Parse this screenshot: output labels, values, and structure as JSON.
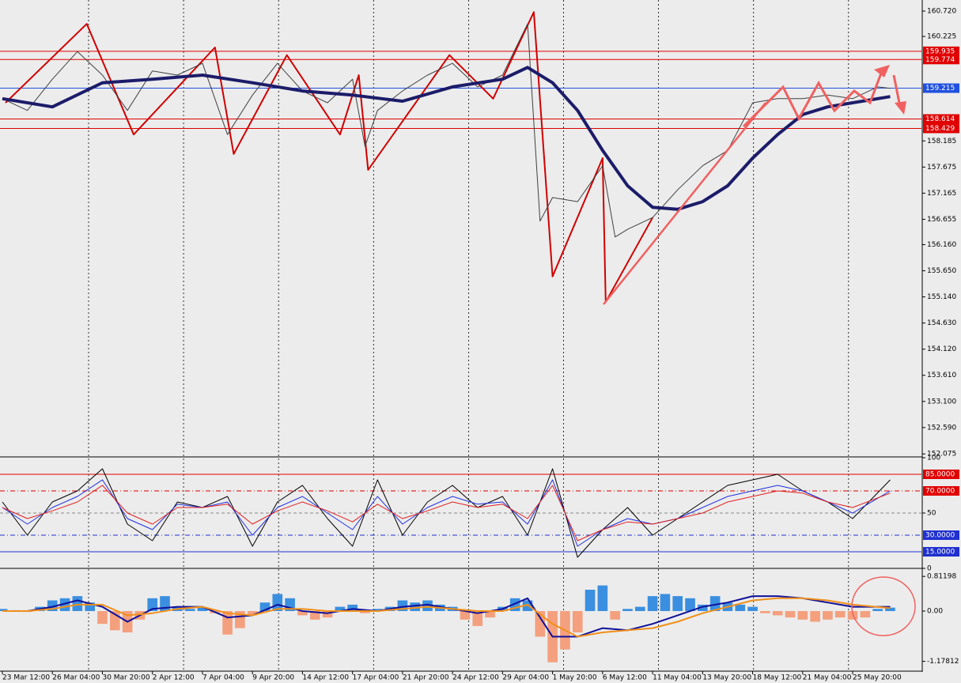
{
  "chart_data": [
    {
      "type": "line",
      "xlim": [
        0,
        294
      ],
      "ylim": [
        152.032,
        160.936
      ],
      "yticks": [
        {
          "value": 160.72,
          "label": "160.720"
        },
        160.225,
        158.185,
        157.675,
        157.165,
        156.655,
        {
          "value": 156.16,
          "label": "156.160"
        },
        {
          "value": 155.65,
          "label": "155.650"
        },
        {
          "value": 155.14,
          "label": "155.140"
        },
        {
          "value": 154.63,
          "label": "154.630"
        },
        {
          "value": 154.12,
          "label": "154.120"
        },
        {
          "value": 153.61,
          "label": "153.610"
        },
        {
          "value": 153.1,
          "label": "153.100"
        },
        {
          "value": 152.59,
          "label": "152.590"
        },
        152.075
      ],
      "xticks": [
        {
          "value": 0,
          "label": "23 Mar 12:00"
        },
        {
          "value": 16,
          "label": "26 Mar 04:00"
        },
        {
          "value": 32,
          "label": "30 Mar 20:00"
        },
        {
          "value": 48,
          "label": "2 Apr 12:00"
        },
        {
          "value": 64,
          "label": "7 Apr 04:00"
        },
        {
          "value": 80,
          "label": "9 Apr 20:00"
        },
        {
          "value": 96,
          "label": "14 Apr 12:00"
        },
        {
          "value": 112,
          "label": "17 Apr 04:00"
        },
        {
          "value": 128,
          "label": "21 Apr 20:00"
        },
        {
          "value": 144,
          "label": "24 Apr 12:00"
        },
        {
          "value": 160,
          "label": "29 Apr 04:00"
        },
        {
          "value": 176,
          "label": "1 May 20:00"
        },
        {
          "value": 192,
          "label": "6 May 12:00"
        },
        {
          "value": 208,
          "label": "11 May 04:00"
        },
        {
          "value": 224,
          "label": "13 May 20:00"
        },
        {
          "value": 240,
          "label": "18 May 12:00"
        },
        {
          "value": 256,
          "label": "21 May 04:00"
        },
        {
          "value": 272,
          "label": "25 May 20:00"
        }
      ],
      "hlines": [
        {
          "value": 159.935,
          "color": "#e00000"
        },
        {
          "value": 159.774,
          "color": "#e00000"
        },
        {
          "value": 159.215,
          "color": "#2050e0"
        },
        {
          "value": 158.614,
          "color": "#e00000"
        },
        {
          "value": 158.429,
          "color": "#e00000"
        }
      ],
      "series": [
        {
          "color": "#d00000",
          "width": 2,
          "x": [
            1,
            27,
            42,
            68,
            74,
            91,
            108,
            114,
            117,
            143,
            157,
            170,
            176,
            192,
            193,
            208
          ],
          "values": [
            158.93,
            160.47,
            158.31,
            160.01,
            157.93,
            159.86,
            158.31,
            159.47,
            157.62,
            159.86,
            159.01,
            160.7,
            155.54,
            157.85,
            155.04,
            156.69
          ]
        },
        {
          "color": "#404040",
          "width": 1,
          "x": [
            0,
            8,
            16,
            24,
            32,
            40,
            48,
            56,
            64,
            72,
            80,
            88,
            96,
            104,
            112,
            116,
            120,
            128,
            136,
            144,
            152,
            160,
            168,
            172,
            176,
            184,
            192,
            196,
            200,
            208,
            216,
            224,
            232,
            240,
            248,
            256,
            264,
            272,
            280,
            284
          ],
          "values": [
            159.01,
            158.78,
            159.39,
            159.93,
            159.47,
            158.78,
            159.55,
            159.47,
            159.7,
            158.31,
            159.08,
            159.7,
            159.16,
            158.93,
            159.39,
            158.08,
            158.78,
            159.16,
            159.47,
            159.7,
            159.24,
            159.47,
            160.47,
            156.62,
            157.08,
            157.0,
            157.7,
            156.31,
            156.46,
            156.69,
            157.23,
            157.7,
            158.0,
            158.93,
            159.01,
            159.01,
            159.08,
            159.01,
            159.24,
            159.21
          ]
        },
        {
          "color": "#1c1c6a",
          "width": 4,
          "x": [
            0,
            16,
            32,
            48,
            64,
            80,
            96,
            112,
            128,
            144,
            160,
            168,
            176,
            184,
            192,
            200,
            208,
            216,
            224,
            232,
            240,
            248,
            256,
            264,
            272,
            284
          ],
          "values": [
            159.01,
            158.85,
            159.32,
            159.39,
            159.47,
            159.32,
            159.16,
            159.08,
            158.96,
            159.24,
            159.39,
            159.62,
            159.32,
            158.78,
            158.0,
            157.31,
            156.89,
            156.85,
            157.0,
            157.31,
            157.85,
            158.31,
            158.7,
            158.85,
            158.93,
            159.05
          ]
        }
      ]
    },
    {
      "type": "line",
      "xlim": [
        0,
        294
      ],
      "ylim": [
        0,
        100
      ],
      "yticks": [
        100,
        50,
        0
      ],
      "hlines": [
        {
          "value": 85,
          "label": "85.0000",
          "color": "#e00000"
        },
        {
          "value": 70,
          "label": "70.0000",
          "color": "#e00000"
        },
        {
          "value": 30,
          "label": "30.0000",
          "color": "#2030d0"
        },
        {
          "value": 15,
          "label": "15.0000",
          "color": "#2030d0"
        }
      ],
      "series": [
        {
          "color": "#000000",
          "width": 1,
          "x": [
            0,
            8,
            16,
            24,
            32,
            40,
            48,
            56,
            64,
            72,
            80,
            88,
            96,
            104,
            112,
            120,
            128,
            136,
            144,
            152,
            160,
            168,
            176,
            184,
            192,
            200,
            208,
            216,
            224,
            232,
            240,
            248,
            256,
            264,
            272,
            284
          ],
          "values": [
            60,
            30,
            60,
            70,
            90,
            40,
            25,
            60,
            55,
            65,
            20,
            60,
            75,
            45,
            20,
            80,
            30,
            60,
            75,
            55,
            65,
            30,
            90,
            10,
            35,
            55,
            30,
            45,
            60,
            75,
            80,
            85,
            70,
            60,
            45,
            80
          ]
        },
        {
          "color": "#2030e0",
          "width": 1,
          "x": [
            0,
            8,
            16,
            24,
            32,
            40,
            48,
            56,
            64,
            72,
            80,
            88,
            96,
            104,
            112,
            120,
            128,
            136,
            144,
            152,
            160,
            168,
            176,
            184,
            192,
            200,
            208,
            216,
            224,
            232,
            240,
            248,
            256,
            264,
            272,
            284
          ],
          "values": [
            55,
            40,
            55,
            65,
            80,
            45,
            35,
            58,
            55,
            60,
            30,
            55,
            65,
            50,
            35,
            65,
            40,
            55,
            65,
            58,
            60,
            40,
            80,
            20,
            35,
            45,
            40,
            45,
            55,
            65,
            70,
            75,
            70,
            60,
            50,
            70
          ]
        },
        {
          "color": "#e02020",
          "width": 1,
          "x": [
            0,
            8,
            16,
            24,
            32,
            40,
            48,
            56,
            64,
            72,
            80,
            88,
            96,
            104,
            112,
            120,
            128,
            136,
            144,
            152,
            160,
            168,
            176,
            184,
            192,
            200,
            208,
            216,
            224,
            232,
            240,
            248,
            256,
            264,
            272,
            284
          ],
          "values": [
            55,
            45,
            52,
            60,
            75,
            50,
            40,
            55,
            55,
            58,
            40,
            52,
            60,
            52,
            42,
            58,
            45,
            52,
            60,
            55,
            58,
            45,
            75,
            25,
            35,
            42,
            40,
            45,
            50,
            60,
            65,
            70,
            68,
            60,
            55,
            68
          ]
        }
      ]
    },
    {
      "type": "bar",
      "xlim": [
        0,
        294
      ],
      "ylim": [
        -1.389,
        0.963
      ],
      "yticks": [
        {
          "value": 0.81198,
          "label": "0.81198"
        },
        {
          "value": 0,
          "label": "0.00"
        },
        -1.17812
      ],
      "series": [
        {
          "type": "bar",
          "color": "#3b8fe0",
          "negative_color": "#f4a07e",
          "x": [
            0,
            4,
            8,
            12,
            16,
            20,
            24,
            28,
            32,
            36,
            40,
            44,
            48,
            52,
            56,
            60,
            64,
            68,
            72,
            76,
            80,
            84,
            88,
            92,
            96,
            100,
            104,
            108,
            112,
            116,
            120,
            124,
            128,
            132,
            136,
            140,
            144,
            148,
            152,
            156,
            160,
            164,
            168,
            172,
            176,
            180,
            184,
            188,
            192,
            196,
            200,
            204,
            208,
            212,
            216,
            220,
            224,
            228,
            232,
            236,
            240,
            244,
            248,
            252,
            256,
            260,
            264,
            268,
            272,
            276,
            280,
            284
          ],
          "values": [
            0.05,
            0.02,
            -0.02,
            0.1,
            0.25,
            0.3,
            0.35,
            0.2,
            -0.3,
            -0.45,
            -0.5,
            -0.2,
            0.3,
            0.35,
            0.1,
            0.05,
            0.08,
            -0.05,
            -0.55,
            -0.4,
            -0.1,
            0.2,
            0.4,
            0.3,
            -0.1,
            -0.2,
            -0.15,
            0.1,
            0.15,
            -0.05,
            0.05,
            0.1,
            0.25,
            0.2,
            0.25,
            0.15,
            0.1,
            -0.2,
            -0.35,
            -0.15,
            0.1,
            0.3,
            0.25,
            -0.6,
            -1.2,
            -0.9,
            -0.5,
            0.5,
            0.6,
            -0.2,
            0.05,
            0.1,
            0.35,
            0.4,
            0.35,
            0.3,
            0.15,
            0.35,
            0.2,
            0.15,
            0.1,
            -0.05,
            -0.1,
            -0.15,
            -0.2,
            -0.25,
            -0.2,
            -0.15,
            -0.2,
            -0.15,
            0.05,
            0.08
          ]
        },
        {
          "type": "line",
          "color": "#10109a",
          "width": 2,
          "x": [
            0,
            8,
            16,
            24,
            32,
            40,
            48,
            56,
            64,
            72,
            80,
            88,
            96,
            104,
            112,
            120,
            128,
            136,
            144,
            152,
            160,
            168,
            176,
            184,
            192,
            200,
            208,
            216,
            224,
            232,
            240,
            248,
            256,
            264,
            272,
            284
          ],
          "values": [
            0.0,
            0.0,
            0.1,
            0.25,
            0.1,
            -0.25,
            0.05,
            0.1,
            0.1,
            -0.15,
            -0.1,
            0.15,
            0.0,
            -0.05,
            0.05,
            0.0,
            0.1,
            0.15,
            0.05,
            -0.05,
            0.05,
            0.3,
            -0.6,
            -0.6,
            -0.4,
            -0.45,
            -0.3,
            -0.1,
            0.1,
            0.2,
            0.35,
            0.35,
            0.3,
            0.2,
            0.1,
            0.1
          ]
        },
        {
          "type": "line",
          "color": "#f0901a",
          "width": 2,
          "x": [
            0,
            8,
            16,
            24,
            32,
            40,
            48,
            56,
            64,
            72,
            80,
            88,
            96,
            104,
            112,
            120,
            128,
            136,
            144,
            152,
            160,
            168,
            176,
            184,
            192,
            200,
            208,
            216,
            224,
            232,
            240,
            248,
            256,
            264,
            272,
            284
          ],
          "values": [
            0.0,
            0.0,
            0.05,
            0.15,
            0.15,
            -0.1,
            -0.05,
            0.05,
            0.1,
            -0.05,
            -0.1,
            0.05,
            0.05,
            0.0,
            0.0,
            0.0,
            0.05,
            0.1,
            0.05,
            0.0,
            0.0,
            0.15,
            -0.3,
            -0.6,
            -0.5,
            -0.45,
            -0.4,
            -0.25,
            -0.05,
            0.1,
            0.25,
            0.3,
            0.3,
            0.25,
            0.15,
            0.07
          ]
        }
      ]
    }
  ]
}
